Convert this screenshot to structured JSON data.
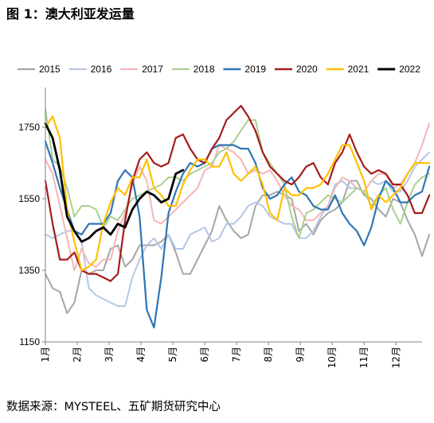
{
  "figure": {
    "title": "图 1：澳大利亚发运量",
    "source": "数据来源：MYSTEEL、五矿期货研究中心"
  },
  "chart_data": {
    "type": "line",
    "y_ticks": [
      "1150",
      "1350",
      "1550",
      "1750"
    ],
    "ylim": [
      1150,
      1850
    ],
    "x_ticks": [
      "1月",
      "2月",
      "3月",
      "4月",
      "5月",
      "6月",
      "7月",
      "8月",
      "9月",
      "10月",
      "11月",
      "12月"
    ],
    "xlim": [
      1,
      53
    ],
    "legend_position": "top",
    "grid": false,
    "series": [
      {
        "name": "2015",
        "color": "#a6a6a6",
        "width": 2,
        "y": [
          1340,
          1300,
          1290,
          1230,
          1260,
          1350,
          1340,
          1350,
          1350,
          1410,
          1420,
          1360,
          1380,
          1420,
          1420,
          1420,
          1430,
          1450,
          1400,
          1340,
          1340,
          1380,
          1420,
          1460,
          1530,
          1490,
          1460,
          1440,
          1450,
          1530,
          1560,
          1560,
          1570,
          1560,
          1550,
          1460,
          1480,
          1450,
          1490,
          1510,
          1520,
          1540,
          1600,
          1600,
          1560,
          1550,
          1520,
          1500,
          1550,
          1540,
          1490,
          1450,
          1390,
          1450
        ]
      },
      {
        "name": "2016",
        "color": "#b4c7e7",
        "width": 2,
        "y": [
          1450,
          1440,
          1450,
          1460,
          1460,
          1430,
          1300,
          1280,
          1270,
          1260,
          1250,
          1250,
          1330,
          1380,
          1420,
          1440,
          1410,
          1450,
          1410,
          1410,
          1450,
          1460,
          1470,
          1430,
          1440,
          1480,
          1480,
          1500,
          1530,
          1540,
          1530,
          1500,
          1490,
          1480,
          1480,
          1440,
          1440,
          1460,
          1500,
          1530,
          1590,
          1600,
          1580,
          1580,
          1570,
          1600,
          1590,
          1600,
          1570,
          1570,
          1600,
          1640,
          1660,
          1680
        ]
      },
      {
        "name": "2017",
        "color": "#f4b6b6",
        "width": 2,
        "y": [
          1660,
          1620,
          1530,
          1440,
          1350,
          1410,
          1370,
          1360,
          1380,
          1380,
          1460,
          1510,
          1590,
          1640,
          1600,
          1490,
          1480,
          1500,
          1520,
          1540,
          1560,
          1580,
          1630,
          1640,
          1700,
          1690,
          1680,
          1660,
          1620,
          1630,
          1620,
          1630,
          1600,
          1560,
          1530,
          1520,
          1490,
          1490,
          1510,
          1530,
          1580,
          1610,
          1600,
          1580,
          1570,
          1600,
          1620,
          1620,
          1580,
          1590,
          1620,
          1650,
          1700,
          1760
        ]
      },
      {
        "name": "2018",
        "color": "#a9d18e",
        "width": 2,
        "y": [
          1800,
          1660,
          1640,
          1580,
          1500,
          1530,
          1530,
          1520,
          1470,
          1500,
          1490,
          1520,
          1550,
          1560,
          1570,
          1580,
          1590,
          1610,
          1610,
          1600,
          1620,
          1630,
          1640,
          1650,
          1680,
          1690,
          1710,
          1740,
          1770,
          1770,
          1680,
          1650,
          1620,
          1590,
          1500,
          1440,
          1510,
          1520,
          1540,
          1560,
          1550,
          1540,
          1560,
          1580,
          1570,
          1530,
          1560,
          1580,
          1520,
          1480,
          1540,
          1590,
          1610,
          1620
        ]
      },
      {
        "name": "2019",
        "color": "#2e75b6",
        "width": 2.2,
        "y": [
          1710,
          1650,
          1580,
          1520,
          1460,
          1450,
          1480,
          1480,
          1480,
          1510,
          1600,
          1630,
          1610,
          1500,
          1240,
          1190,
          1330,
          1510,
          1570,
          1620,
          1650,
          1640,
          1650,
          1690,
          1700,
          1700,
          1700,
          1690,
          1690,
          1650,
          1580,
          1550,
          1560,
          1590,
          1610,
          1570,
          1560,
          1530,
          1520,
          1520,
          1560,
          1510,
          1480,
          1460,
          1420,
          1470,
          1550,
          1600,
          1580,
          1540,
          1540,
          1560,
          1570,
          1640
        ]
      },
      {
        "name": "2020",
        "color": "#a31c1c",
        "width": 2.2,
        "y": [
          1600,
          1480,
          1380,
          1380,
          1400,
          1350,
          1340,
          1340,
          1330,
          1320,
          1340,
          1490,
          1600,
          1660,
          1680,
          1650,
          1640,
          1650,
          1720,
          1730,
          1690,
          1660,
          1650,
          1690,
          1720,
          1770,
          1790,
          1810,
          1780,
          1740,
          1680,
          1640,
          1620,
          1600,
          1590,
          1610,
          1640,
          1650,
          1610,
          1590,
          1650,
          1680,
          1730,
          1680,
          1640,
          1620,
          1630,
          1620,
          1590,
          1590,
          1560,
          1510,
          1510,
          1560
        ]
      },
      {
        "name": "2021",
        "color": "#ffc000",
        "width": 2.2,
        "y": [
          1750,
          1780,
          1720,
          1520,
          1430,
          1350,
          1360,
          1380,
          1480,
          1540,
          1580,
          1560,
          1610,
          1610,
          1660,
          1580,
          1560,
          1530,
          1530,
          1590,
          1630,
          1660,
          1660,
          1640,
          1640,
          1680,
          1620,
          1600,
          1620,
          1640,
          1590,
          1510,
          1490,
          1580,
          1560,
          1560,
          1580,
          1580,
          1590,
          1620,
          1660,
          1700,
          1700,
          1650,
          1600,
          1520,
          1560,
          1540,
          1560,
          1580,
          1620,
          1650,
          1650,
          1650
        ]
      },
      {
        "name": "2022",
        "color": "#000000",
        "width": 2.8,
        "y": [
          1760,
          1720,
          1630,
          1500,
          1460,
          1430,
          1440,
          1460,
          1470,
          1450,
          1480,
          1470,
          1520,
          1550,
          1570,
          1560,
          1540,
          1550,
          1620,
          1630
        ]
      }
    ]
  }
}
